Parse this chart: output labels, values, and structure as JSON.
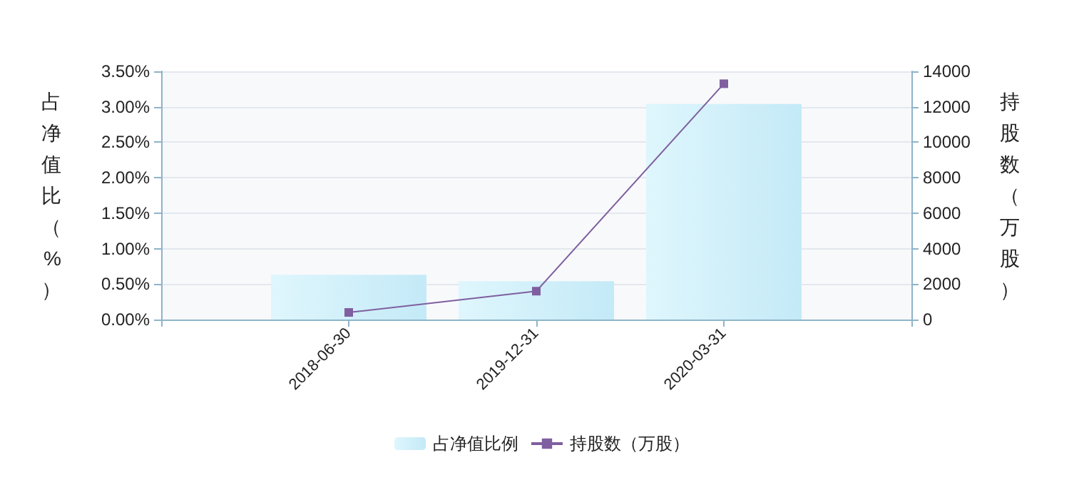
{
  "chart_data": {
    "type": "bar",
    "categories": [
      null,
      "2018-06-30",
      "2019-12-31",
      "2020-03-31",
      null
    ],
    "ylabel": "占净值比（%）",
    "y2label": "持股数（万股）",
    "series": [
      {
        "name": "占净值比例",
        "color": "#c4eaf7",
        "values": [
          null,
          0.63,
          0.54,
          3.04,
          null
        ]
      },
      {
        "name": "持股数（万股）",
        "type": "line",
        "axis": "y2",
        "color": "#7f5f9f",
        "marker": "square",
        "values": [
          null,
          400,
          1600,
          13300,
          null
        ]
      }
    ],
    "ylim": [
      0,
      3.5
    ],
    "yticks": [
      {
        "value": 0,
        "label": "0.00%"
      },
      {
        "value": 0.5,
        "label": "0.50%"
      },
      {
        "value": 1,
        "label": "1.00%"
      },
      {
        "value": 1.5,
        "label": "1.50%"
      },
      {
        "value": 2,
        "label": "2.00%"
      },
      {
        "value": 2.5,
        "label": "2.50%"
      },
      {
        "value": 3,
        "label": "3.00%"
      },
      {
        "value": 3.5,
        "label": "3.50%"
      }
    ],
    "y2lim": [
      0,
      14000
    ],
    "y2ticks": [
      0,
      2000,
      4000,
      6000,
      8000,
      10000,
      12000,
      14000
    ],
    "grid": "y",
    "legend": "bottom"
  }
}
